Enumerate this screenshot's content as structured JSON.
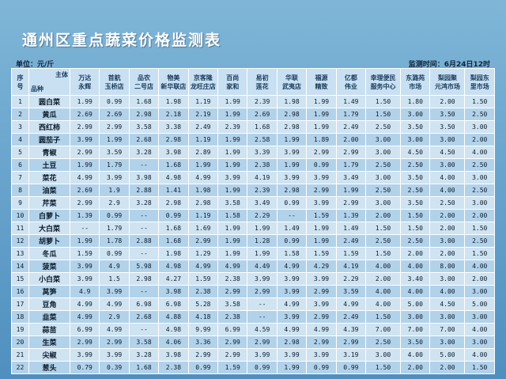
{
  "title": "通州区重点蔬菜价格监测表",
  "unit": "单位：元/斤",
  "time": "监测时间：6月24日12时",
  "header": {
    "index": "序\n号",
    "main_body": "主体",
    "variety": "品种",
    "markets": [
      "万达\n永辉",
      "首航\n玉桥店",
      "品农\n二号店",
      "物美\n新华联店",
      "京客隆\n龙旺庄店",
      "百尚\n家和",
      "易初\n莲花",
      "华联\n武夷店",
      "福源\n精致",
      "亿都\n伟业",
      "幸理便民\n服务中心",
      "东潞苑\n市场",
      "梨园聚\n元鸿市场",
      "梨园东\n里市场"
    ]
  },
  "rows": [
    {
      "idx": "1",
      "name": "圆白菜",
      "prices": [
        "1.99",
        "0.99",
        "1.68",
        "1.98",
        "1.19",
        "1.99",
        "2.39",
        "1.98",
        "1.99",
        "1.49",
        "1.50",
        "1.80",
        "2.00",
        "1.50"
      ]
    },
    {
      "idx": "2",
      "name": "黄瓜",
      "prices": [
        "2.69",
        "2.69",
        "2.98",
        "2.18",
        "2.19",
        "1.99",
        "2.69",
        "2.98",
        "1.99",
        "1.79",
        "1.50",
        "3.00",
        "3.50",
        "2.50"
      ]
    },
    {
      "idx": "3",
      "name": "西红柿",
      "prices": [
        "2.99",
        "2.99",
        "3.58",
        "3.38",
        "2.49",
        "2.39",
        "1.68",
        "2.98",
        "1.99",
        "2.49",
        "2.50",
        "3.50",
        "3.50",
        "3.00"
      ]
    },
    {
      "idx": "4",
      "name": "圆茄子",
      "prices": [
        "3.99",
        "1.99",
        "2.68",
        "2.98",
        "1.19",
        "1.99",
        "2.58",
        "1.99",
        "1.89",
        "2.00",
        "3.00",
        "3.00",
        "3.00",
        "2.00"
      ]
    },
    {
      "idx": "5",
      "name": "青椒",
      "prices": [
        "2.99",
        "3.59",
        "3.28",
        "3.98",
        "2.89",
        "1.99",
        "3.39",
        "3.99",
        "2.99",
        "2.99",
        "3.00",
        "4.50",
        "4.50",
        "4.00"
      ]
    },
    {
      "idx": "6",
      "name": "土豆",
      "prices": [
        "1.99",
        "1.79",
        "--",
        "1.68",
        "1.99",
        "1.99",
        "2.38",
        "1.99",
        "0.99",
        "1.79",
        "2.50",
        "2.50",
        "3.00",
        "2.50"
      ]
    },
    {
      "idx": "7",
      "name": "菜花",
      "prices": [
        "4.99",
        "3.99",
        "3.98",
        "4.98",
        "4.99",
        "3.99",
        "4.19",
        "3.99",
        "3.99",
        "3.49",
        "3.00",
        "3.50",
        "4.00",
        "3.00"
      ]
    },
    {
      "idx": "8",
      "name": "油菜",
      "prices": [
        "2.69",
        "1.9",
        "2.88",
        "1.41",
        "1.98",
        "1.99",
        "2.39",
        "2.98",
        "2.99",
        "1.99",
        "2.50",
        "2.50",
        "4.00",
        "2.50"
      ]
    },
    {
      "idx": "9",
      "name": "芹菜",
      "prices": [
        "2.99",
        "2.9",
        "3.28",
        "2.98",
        "2.98",
        "3.58",
        "3.49",
        "0.99",
        "3.99",
        "2.99",
        "3.00",
        "3.50",
        "2.50",
        "3.00"
      ]
    },
    {
      "idx": "10",
      "name": "白萝卜",
      "prices": [
        "1.39",
        "0.99",
        "--",
        "0.99",
        "1.19",
        "1.58",
        "2.29",
        "--",
        "1.59",
        "1.39",
        "2.00",
        "1.50",
        "2.00",
        "2.00"
      ]
    },
    {
      "idx": "11",
      "name": "大白菜",
      "prices": [
        "--",
        "1.79",
        "--",
        "1.68",
        "1.69",
        "1.99",
        "1.99",
        "1.49",
        "1.99",
        "1.49",
        "1.50",
        "1.50",
        "2.00",
        "1.50"
      ]
    },
    {
      "idx": "12",
      "name": "胡萝卜",
      "prices": [
        "1.99",
        "1.78",
        "2.88",
        "1.68",
        "2.99",
        "1.99",
        "1.28",
        "0.99",
        "1.99",
        "2.49",
        "2.50",
        "2.50",
        "3.00",
        "2.50"
      ]
    },
    {
      "idx": "13",
      "name": "冬瓜",
      "prices": [
        "1.59",
        "0.99",
        "--",
        "1.98",
        "1.29",
        "1.99",
        "1.99",
        "1.58",
        "1.59",
        "1.59",
        "1.50",
        "2.00",
        "2.00",
        "1.50"
      ]
    },
    {
      "idx": "14",
      "name": "菠菜",
      "prices": [
        "3.99",
        "4.9",
        "5.98",
        "4.98",
        "4.99",
        "4.99",
        "4.49",
        "4.99",
        "4.29",
        "4.19",
        "4.00",
        "4.00",
        "8.00",
        "4.00"
      ]
    },
    {
      "idx": "15",
      "name": "小白菜",
      "prices": [
        "3.99",
        "1.5",
        "2.98",
        "4.27",
        "1.59",
        "2.38",
        "3.99",
        "3.99",
        "3.99",
        "2.29",
        "2.00",
        "3.40",
        "3.00",
        "2.00"
      ]
    },
    {
      "idx": "16",
      "name": "莴笋",
      "prices": [
        "4.9",
        "3.99",
        "--",
        "3.98",
        "2.38",
        "2.99",
        "2.99",
        "3.99",
        "2.99",
        "3.59",
        "4.00",
        "4.00",
        "4.00",
        "3.00"
      ]
    },
    {
      "idx": "17",
      "name": "豆角",
      "prices": [
        "4.99",
        "4.99",
        "6.98",
        "6.98",
        "5.28",
        "3.58",
        "--",
        "4.99",
        "3.99",
        "4.99",
        "4.00",
        "5.00",
        "4.50",
        "5.00"
      ]
    },
    {
      "idx": "18",
      "name": "韭菜",
      "prices": [
        "4.99",
        "2.9",
        "2.68",
        "4.88",
        "4.18",
        "2.38",
        "--",
        "3.99",
        "2.99",
        "2.49",
        "1.50",
        "3.00",
        "3.00",
        "3.00"
      ]
    },
    {
      "idx": "19",
      "name": "蒜苗",
      "prices": [
        "6.99",
        "4.99",
        "--",
        "4.98",
        "9.99",
        "6.99",
        "4.59",
        "4.99",
        "4.99",
        "4.39",
        "7.00",
        "7.00",
        "7.00",
        "4.00"
      ]
    },
    {
      "idx": "20",
      "name": "生菜",
      "prices": [
        "2.99",
        "2.99",
        "3.58",
        "4.06",
        "3.36",
        "2.99",
        "2.99",
        "2.98",
        "2.99",
        "2.99",
        "2.50",
        "3.50",
        "3.00",
        "3.00"
      ]
    },
    {
      "idx": "21",
      "name": "尖椒",
      "prices": [
        "3.99",
        "3.99",
        "3.28",
        "3.98",
        "2.99",
        "2.99",
        "3.99",
        "3.99",
        "3.99",
        "3.19",
        "3.00",
        "4.00",
        "5.00",
        "4.00"
      ]
    },
    {
      "idx": "22",
      "name": "葱头",
      "prices": [
        "0.79",
        "0.39",
        "1.68",
        "2.38",
        "0.99",
        "1.59",
        "0.99",
        "1.99",
        "0.99",
        "0.99",
        "1.50",
        "2.00",
        "2.00",
        "1.50"
      ]
    }
  ]
}
